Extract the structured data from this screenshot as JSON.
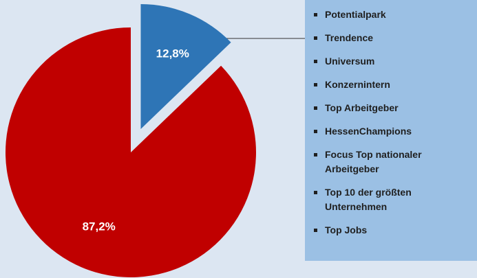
{
  "chart_data": {
    "type": "pie",
    "values": [
      12.8,
      87.2
    ],
    "value_labels": [
      "12,8%",
      "87,2%"
    ],
    "colors": [
      "#2e75b6",
      "#c00000"
    ],
    "explode": [
      true,
      false
    ],
    "callout_items": [
      "Potentialpark",
      "Trendence",
      "Universum",
      "Konzernintern",
      "Top Arbeitgeber",
      "HessenChampions",
      "Focus Top nationaler Arbeitgeber",
      "Top 10 der größten Unternehmen",
      "Top Jobs"
    ]
  }
}
